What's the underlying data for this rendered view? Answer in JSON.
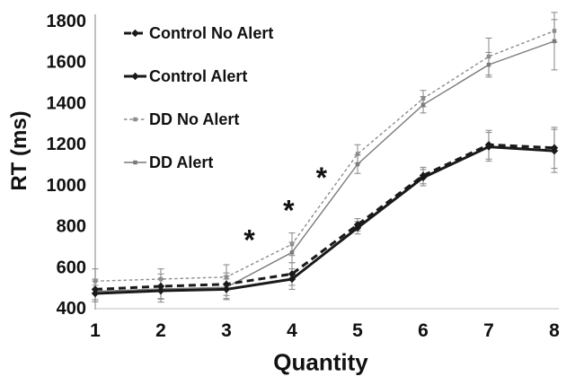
{
  "chart_data": {
    "type": "line",
    "title": "",
    "xlabel": "Quantity",
    "ylabel": "RT (ms)",
    "x": [
      1,
      2,
      3,
      4,
      5,
      6,
      7,
      8
    ],
    "ylim": [
      400,
      1800
    ],
    "y_ticks": [
      400,
      600,
      800,
      1000,
      1200,
      1400,
      1600,
      1800
    ],
    "grid": false,
    "legend_position": "upper-left-inside",
    "axis_color": "#9e9e9e",
    "baseline_color": "#cccccc",
    "error_bar_color": "#8f8f8f",
    "series": [
      {
        "name": "Control No Alert",
        "color": "#1a1a1a",
        "line_style": "dashed",
        "line_width": 3,
        "marker": "diamond",
        "marker_size": 4.2,
        "values": [
          490,
          505,
          515,
          565,
          805,
          1045,
          1195,
          1180
        ],
        "errors": [
          50,
          60,
          55,
          55,
          30,
          40,
          70,
          100
        ]
      },
      {
        "name": "Control Alert",
        "color": "#1a1a1a",
        "line_style": "solid",
        "line_width": 3,
        "marker": "diamond",
        "marker_size": 4.2,
        "values": [
          470,
          483,
          490,
          540,
          790,
          1035,
          1185,
          1165
        ],
        "errors": [
          40,
          55,
          50,
          50,
          30,
          40,
          70,
          105
        ]
      },
      {
        "name": "DD No Alert",
        "color": "#8c8c8c",
        "line_style": "dashed",
        "line_width": 1.4,
        "marker": "square",
        "marker_size": 4.5,
        "values": [
          530,
          540,
          550,
          710,
          1150,
          1420,
          1625,
          1750
        ],
        "errors": [
          60,
          50,
          60,
          55,
          45,
          40,
          90,
          55
        ]
      },
      {
        "name": "DD Alert",
        "color": "#7a7a7a",
        "line_style": "solid",
        "line_width": 1.4,
        "marker": "square",
        "marker_size": 4.5,
        "values": [
          480,
          492,
          500,
          670,
          1100,
          1390,
          1585,
          1700
        ],
        "errors": [
          50,
          50,
          55,
          50,
          45,
          40,
          60,
          140
        ]
      }
    ],
    "annotations": [
      {
        "text": "*",
        "x": 3.35,
        "y": 730
      },
      {
        "text": "*",
        "x": 3.95,
        "y": 875
      },
      {
        "text": "*",
        "x": 4.45,
        "y": 1035
      }
    ]
  }
}
